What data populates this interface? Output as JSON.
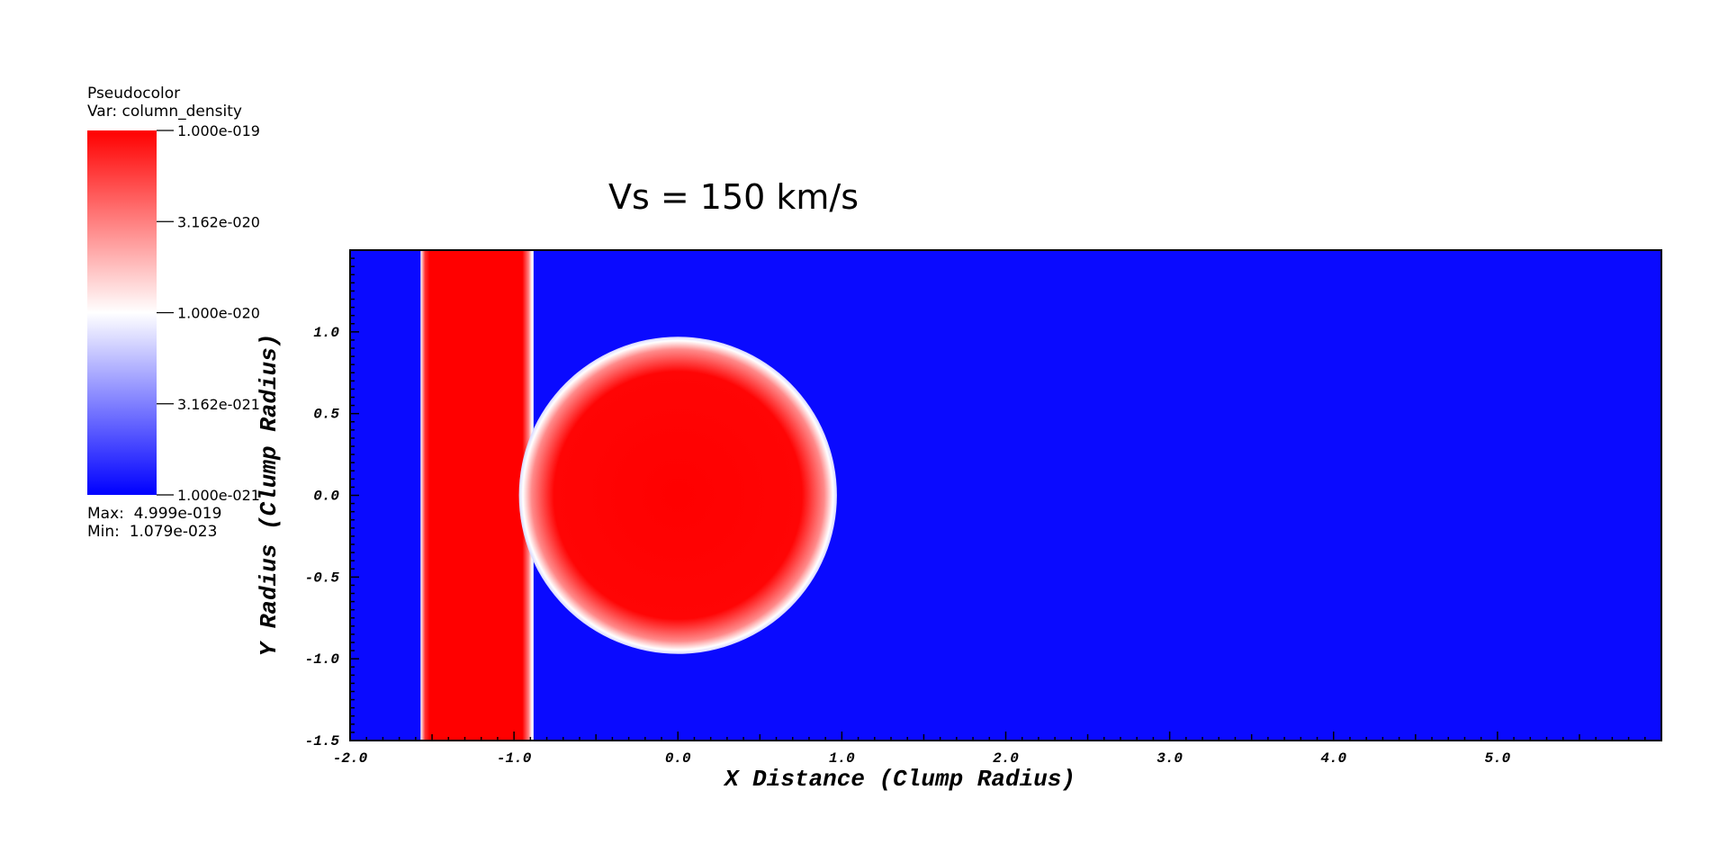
{
  "legend": {
    "plot_type": "Pseudocolor",
    "var_label": "Var: column_density",
    "tick_labels": [
      "1.000e-019",
      "3.162e-020",
      "1.000e-020",
      "3.162e-021",
      "1.000e-021"
    ],
    "max_label": "Max:  4.999e-019",
    "min_label": "Min:  1.079e-023",
    "colors": {
      "high": "#ff0000",
      "mid": "#ffffff",
      "low": "#0000ff"
    }
  },
  "chart_data": {
    "type": "heatmap",
    "title": "Vs = 150 km/s",
    "xlabel": "X Distance (Clump Radius)",
    "ylabel": "Y Radius (Clump Radius)",
    "xlim": [
      -2.0,
      6.0
    ],
    "ylim": [
      -1.5,
      1.5
    ],
    "xticks": [
      -2.0,
      -1.0,
      0.0,
      1.0,
      2.0,
      3.0,
      4.0,
      5.0
    ],
    "xtick_labels": [
      "-2.0",
      "-1.0",
      "0.0",
      "1.0",
      "2.0",
      "3.0",
      "4.0",
      "5.0"
    ],
    "yticks": [
      -1.5,
      -1.0,
      -0.5,
      0.0,
      0.5,
      1.0
    ],
    "ytick_labels": [
      "-1.5",
      "-1.0",
      "-0.5",
      "0.0",
      "0.5",
      "1.0"
    ],
    "background_color": "#0a0aff",
    "features": {
      "slab": {
        "x_min": -1.57,
        "x_max": -0.88,
        "color": "#ff0000"
      },
      "clump": {
        "center_x": 0.0,
        "center_y": 0.0,
        "radius": 0.97,
        "color": "#ff0000"
      }
    }
  }
}
